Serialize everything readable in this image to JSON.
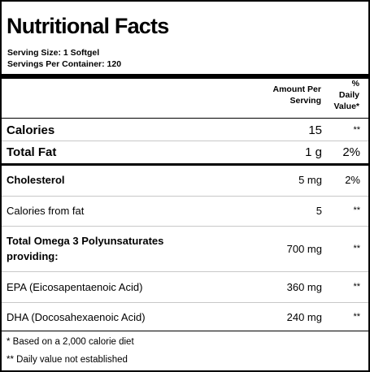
{
  "title": "Nutritional Facts",
  "serving": {
    "size": "Serving Size:  1 Softgel",
    "per_container": "Servings Per Container:  120"
  },
  "columns": {
    "amount_line1": "Amount Per",
    "amount_line2": "Serving",
    "dv_line1": "%",
    "dv_line2": "Daily",
    "dv_line3": "Value*"
  },
  "rows": [
    {
      "label": "Calories",
      "amount": "15",
      "dv": "**"
    },
    {
      "label": "Total Fat",
      "amount": "1 g",
      "dv": "2%"
    },
    {
      "label": "Cholesterol",
      "amount": "5 mg",
      "dv": "2%"
    },
    {
      "label": "Calories from fat",
      "amount": "5",
      "dv": "**"
    },
    {
      "label_line1": "Total Omega 3 Polyunsaturates",
      "label_line2": "providing:",
      "amount": "700 mg",
      "dv": "**"
    },
    {
      "label": "EPA (Eicosapentaenoic Acid)",
      "amount": "360 mg",
      "dv": "**"
    },
    {
      "label": "DHA (Docosahexaenoic Acid)",
      "amount": "240 mg",
      "dv": "**"
    }
  ],
  "notes": {
    "daily_basis": "* Based on a 2,000 calorie diet",
    "not_established": "** Daily value not established"
  }
}
